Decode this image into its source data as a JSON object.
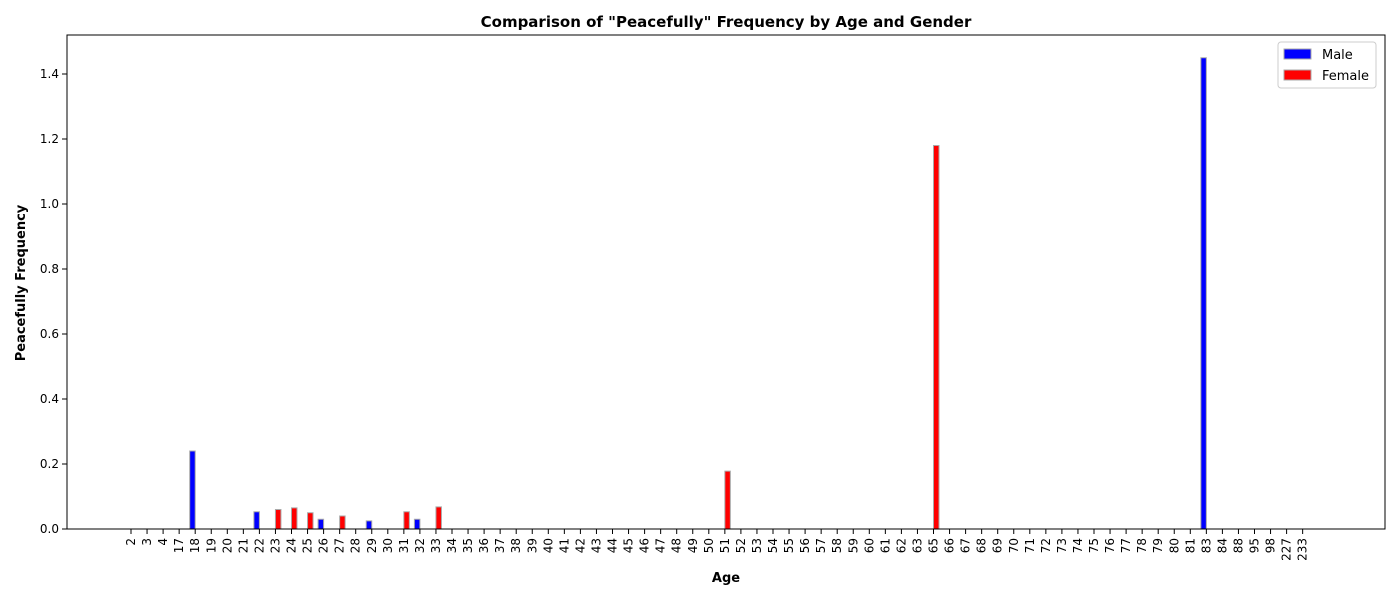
{
  "chart_data": {
    "type": "bar",
    "title": "Comparison of \"Peacefully\" Frequency by Age and Gender",
    "xlabel": "Age",
    "ylabel": "Peacefully Frequency",
    "ylim": [
      0,
      1.52
    ],
    "yticks": [
      "0.0",
      "0.2",
      "0.4",
      "0.6",
      "0.8",
      "1.0",
      "1.2",
      "1.4"
    ],
    "grid": false,
    "legend_position": "top-right",
    "categories": [
      "2",
      "3",
      "4",
      "17",
      "18",
      "19",
      "20",
      "21",
      "22",
      "23",
      "24",
      "25",
      "26",
      "27",
      "28",
      "29",
      "30",
      "31",
      "32",
      "33",
      "34",
      "35",
      "36",
      "37",
      "38",
      "39",
      "40",
      "41",
      "42",
      "43",
      "44",
      "45",
      "46",
      "47",
      "48",
      "49",
      "50",
      "51",
      "52",
      "53",
      "54",
      "55",
      "56",
      "57",
      "58",
      "59",
      "60",
      "61",
      "62",
      "63",
      "65",
      "66",
      "67",
      "68",
      "69",
      "70",
      "71",
      "72",
      "73",
      "74",
      "75",
      "76",
      "77",
      "78",
      "79",
      "80",
      "81",
      "83",
      "84",
      "88",
      "95",
      "98",
      "227",
      "233"
    ],
    "series": [
      {
        "name": "Male",
        "color": "#0000ff",
        "values": [
          0,
          0,
          0,
          0,
          0.24,
          0,
          0,
          0,
          0.053,
          0,
          0,
          0,
          0.03,
          0,
          0,
          0.025,
          0,
          0,
          0.03,
          0,
          0,
          0,
          0,
          0,
          0,
          0,
          0,
          0,
          0,
          0,
          0,
          0,
          0,
          0,
          0,
          0,
          0,
          0,
          0,
          0,
          0,
          0,
          0,
          0,
          0,
          0,
          0,
          0,
          0,
          0,
          0,
          0,
          0,
          0,
          0,
          0,
          0,
          0,
          0,
          0,
          0,
          0,
          0,
          0,
          0,
          0,
          0,
          1.45,
          0,
          0,
          0,
          0,
          0,
          0
        ]
      },
      {
        "name": "Female",
        "color": "#ff0000",
        "values": [
          0,
          0,
          0,
          0,
          0,
          0,
          0,
          0,
          0,
          0.06,
          0.065,
          0.05,
          0,
          0.04,
          0,
          0,
          0,
          0.053,
          0,
          0.068,
          0,
          0,
          0,
          0,
          0,
          0,
          0,
          0,
          0,
          0,
          0,
          0,
          0,
          0,
          0,
          0,
          0,
          0.178,
          0,
          0,
          0,
          0,
          0,
          0,
          0,
          0,
          0,
          0,
          0,
          0,
          1.18,
          0,
          0,
          0,
          0,
          0,
          0,
          0,
          0,
          0,
          0,
          0,
          0,
          0,
          0,
          0,
          0,
          0,
          0,
          0,
          0,
          0,
          0,
          0
        ]
      }
    ]
  }
}
